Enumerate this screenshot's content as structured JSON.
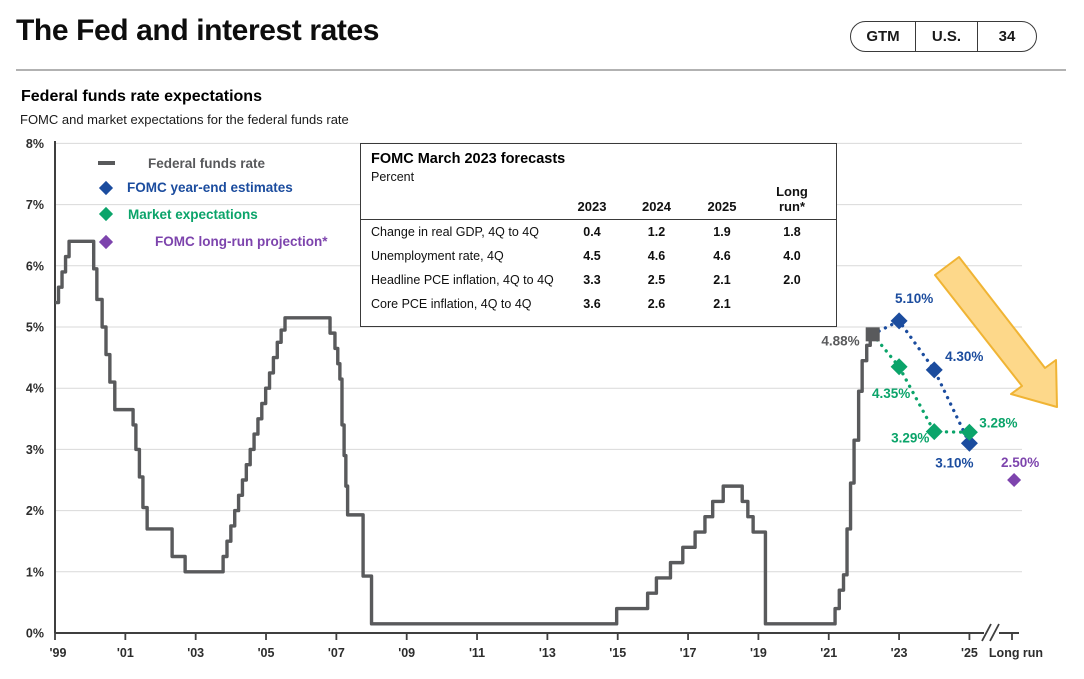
{
  "header": {
    "title": "The Fed and interest rates",
    "badges": [
      "GTM",
      "U.S.",
      "34"
    ]
  },
  "chart": {
    "title": "Federal funds rate expectations",
    "subtitle": "FOMC and market expectations for the federal funds rate",
    "legend": [
      {
        "label": "Federal funds rate",
        "marker": "line",
        "color": "#58595b"
      },
      {
        "label": "FOMC year-end estimates",
        "marker": "diamond",
        "color": "#1b4c9e"
      },
      {
        "label": "Market expectations",
        "marker": "diamond",
        "color": "#0ba46a"
      },
      {
        "label": "FOMC long-run projection*",
        "marker": "diamond",
        "color": "#7d44ad"
      }
    ]
  },
  "forecast_table": {
    "title": "FOMC March 2023 forecasts",
    "unit_label": "Percent",
    "columns": [
      "2023",
      "2024",
      "2025",
      "Long run*"
    ],
    "rows": [
      {
        "label": "Change in real GDP, 4Q to 4Q",
        "values": [
          "0.4",
          "1.2",
          "1.9",
          "1.8"
        ]
      },
      {
        "label": "Unemployment rate, 4Q",
        "values": [
          "4.5",
          "4.6",
          "4.6",
          "4.0"
        ]
      },
      {
        "label": "Headline PCE inflation, 4Q to 4Q",
        "values": [
          "3.3",
          "2.5",
          "2.1",
          "2.0"
        ]
      },
      {
        "label": "Core PCE inflation, 4Q to 4Q",
        "values": [
          "3.6",
          "2.6",
          "2.1",
          ""
        ]
      }
    ]
  },
  "chart_data": {
    "type": "line",
    "title": "Federal funds rate expectations",
    "ylabel": "Percent",
    "ylim": [
      0,
      8
    ],
    "grid": true,
    "y_ticks": [
      "0%",
      "1%",
      "2%",
      "3%",
      "4%",
      "5%",
      "6%",
      "7%",
      "8%"
    ],
    "x_axis": {
      "tick_years": [
        1999,
        2001,
        2003,
        2005,
        2007,
        2009,
        2011,
        2013,
        2015,
        2017,
        2019,
        2021,
        2023,
        2025
      ],
      "tick_labels": [
        "'99",
        "'01",
        "'03",
        "'05",
        "'07",
        "'09",
        "'11",
        "'13",
        "'15",
        "'17",
        "'19",
        "'21",
        "'23",
        "'25"
      ],
      "long_run_label": "Long run",
      "axis_break": true
    },
    "style": {
      "grid_color": "#d9d9d9",
      "axis_color": "#3f3f3f",
      "line_color": "#595a5c"
    },
    "fed_funds_rate": {
      "name": "Federal funds rate",
      "steps": [
        [
          1999.0,
          5.4
        ],
        [
          1999.1,
          5.65
        ],
        [
          1999.2,
          5.9
        ],
        [
          1999.3,
          6.15
        ],
        [
          1999.4,
          6.4
        ],
        [
          2000.1,
          5.95
        ],
        [
          2000.19,
          5.45
        ],
        [
          2000.34,
          5.0
        ],
        [
          2000.45,
          4.55
        ],
        [
          2000.56,
          4.1
        ],
        [
          2000.7,
          3.65
        ],
        [
          2001.22,
          3.4
        ],
        [
          2001.3,
          3.0
        ],
        [
          2001.4,
          2.55
        ],
        [
          2001.5,
          2.05
        ],
        [
          2001.62,
          1.7
        ],
        [
          2002.33,
          1.25
        ],
        [
          2002.7,
          1.0
        ],
        [
          2003.78,
          1.25
        ],
        [
          2003.89,
          1.5
        ],
        [
          2004.0,
          1.75
        ],
        [
          2004.11,
          2.0
        ],
        [
          2004.22,
          2.25
        ],
        [
          2004.33,
          2.5
        ],
        [
          2004.44,
          2.75
        ],
        [
          2004.55,
          3.0
        ],
        [
          2004.66,
          3.25
        ],
        [
          2004.77,
          3.5
        ],
        [
          2004.88,
          3.75
        ],
        [
          2004.99,
          4.0
        ],
        [
          2005.1,
          4.25
        ],
        [
          2005.21,
          4.5
        ],
        [
          2005.32,
          4.75
        ],
        [
          2005.43,
          4.95
        ],
        [
          2005.54,
          5.15
        ],
        [
          2006.82,
          4.9
        ],
        [
          2006.96,
          4.65
        ],
        [
          2007.04,
          4.4
        ],
        [
          2007.1,
          4.15
        ],
        [
          2007.16,
          3.4
        ],
        [
          2007.22,
          2.9
        ],
        [
          2007.27,
          2.4
        ],
        [
          2007.32,
          1.93
        ],
        [
          2007.76,
          0.93
        ],
        [
          2008.0,
          0.15
        ],
        [
          2014.97,
          0.4
        ],
        [
          2015.85,
          0.65
        ],
        [
          2016.1,
          0.9
        ],
        [
          2016.5,
          1.15
        ],
        [
          2016.85,
          1.4
        ],
        [
          2017.2,
          1.65
        ],
        [
          2017.48,
          1.9
        ],
        [
          2017.7,
          2.15
        ],
        [
          2018.0,
          2.4
        ],
        [
          2018.54,
          2.15
        ],
        [
          2018.7,
          1.9
        ],
        [
          2018.85,
          1.65
        ],
        [
          2019.2,
          0.15
        ],
        [
          2021.18,
          0.4
        ],
        [
          2021.3,
          0.7
        ],
        [
          2021.42,
          0.95
        ],
        [
          2021.52,
          1.7
        ],
        [
          2021.62,
          2.45
        ],
        [
          2021.72,
          3.15
        ],
        [
          2021.85,
          3.95
        ],
        [
          2021.95,
          4.45
        ],
        [
          2022.08,
          4.7
        ],
        [
          2022.18,
          4.88
        ],
        [
          2022.25,
          4.88
        ]
      ]
    },
    "current": {
      "x": 2022.25,
      "y": 4.88,
      "label": "4.88%"
    },
    "series": [
      {
        "name": "FOMC year-end estimates",
        "color": "#1b4c9e",
        "marker": "diamond",
        "points": [
          {
            "x": 2023,
            "y": 5.1,
            "label": "5.10%"
          },
          {
            "x": 2024,
            "y": 4.3,
            "label": "4.30%"
          },
          {
            "x": 2025,
            "y": 3.1,
            "label": "3.10%"
          }
        ]
      },
      {
        "name": "Market expectations",
        "color": "#0ba46a",
        "marker": "diamond",
        "points": [
          {
            "x": 2023,
            "y": 4.35,
            "label": "4.35%"
          },
          {
            "x": 2024,
            "y": 3.29,
            "label": "3.29%"
          },
          {
            "x": 2025,
            "y": 3.28,
            "label": "3.28%"
          }
        ]
      },
      {
        "name": "FOMC long-run projection*",
        "color": "#7d44ad",
        "marker": "diamond",
        "points": [
          {
            "x": 2026.27,
            "y": 2.5,
            "label": "2.50%",
            "x_label": "Long run"
          }
        ]
      }
    ],
    "annotation_arrow": {
      "direction": "down-right",
      "fill": "#fdd88a",
      "stroke": "#f0b434"
    }
  }
}
